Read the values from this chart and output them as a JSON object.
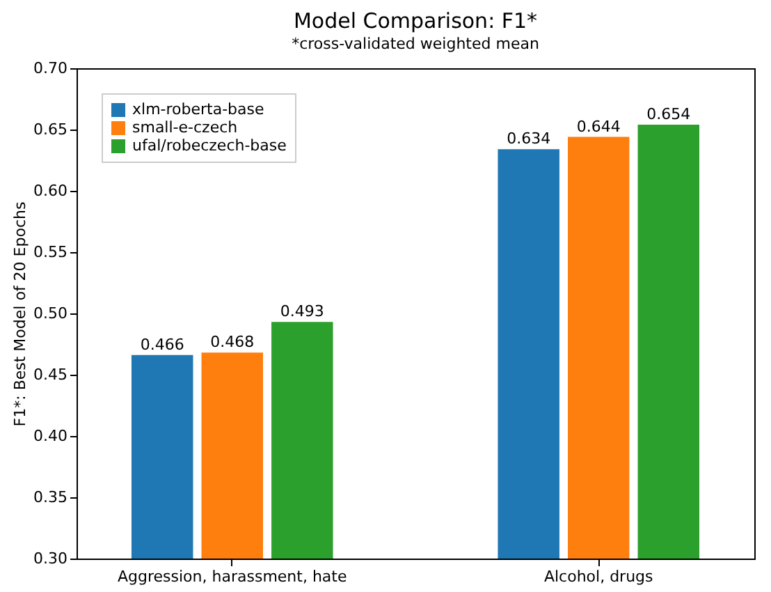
{
  "chart_data": {
    "type": "bar",
    "title": "Model Comparison: F1*",
    "subtitle": "*cross-validated weighted mean",
    "ylabel": "F1*: Best Model of 20 Epochs",
    "categories": [
      "Aggression, harassment, hate",
      "Alcohol, drugs"
    ],
    "series": [
      {
        "name": "xlm-roberta-base",
        "color": "#1f77b4",
        "values": [
          0.466,
          0.634
        ]
      },
      {
        "name": "small-e-czech",
        "color": "#ff7f0e",
        "values": [
          0.468,
          0.644
        ]
      },
      {
        "name": "ufal/robeczech-base",
        "color": "#2ca02c",
        "values": [
          0.493,
          0.654
        ]
      }
    ],
    "ylim": [
      0.3,
      0.7
    ],
    "yticks": [
      {
        "value": 0.3,
        "label": "0.30"
      },
      {
        "value": 0.35,
        "label": "0.35"
      },
      {
        "value": 0.4,
        "label": "0.40"
      },
      {
        "value": 0.45,
        "label": "0.45"
      },
      {
        "value": 0.5,
        "label": "0.50"
      },
      {
        "value": 0.55,
        "label": "0.55"
      },
      {
        "value": 0.6,
        "label": "0.60"
      },
      {
        "value": 0.65,
        "label": "0.65"
      },
      {
        "value": 0.7,
        "label": "0.70"
      }
    ],
    "data_labels": true,
    "grid": false,
    "legend": "top left"
  }
}
